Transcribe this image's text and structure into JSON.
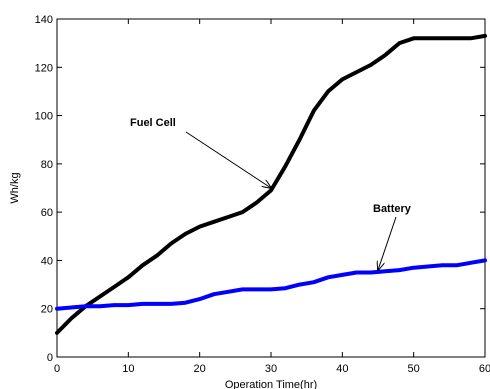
{
  "chart_data": {
    "type": "line",
    "xlabel": "Operation Time(hr)",
    "ylabel": "Wh/kg",
    "xlim": [
      0,
      60
    ],
    "ylim": [
      0,
      140
    ],
    "xticks": [
      0,
      10,
      20,
      30,
      40,
      50,
      60
    ],
    "yticks": [
      0,
      20,
      40,
      60,
      80,
      100,
      120,
      140
    ],
    "grid": false,
    "series": [
      {
        "name": "Fuel Cell",
        "color": "#000000",
        "x": [
          0,
          2,
          4,
          6,
          8,
          10,
          12,
          14,
          16,
          18,
          20,
          22,
          24,
          26,
          28,
          30,
          32,
          34,
          36,
          38,
          40,
          42,
          44,
          46,
          48,
          50,
          52,
          54,
          56,
          58,
          60
        ],
        "y": [
          10,
          16,
          21,
          25,
          29,
          33,
          38,
          42,
          47,
          51,
          54,
          56,
          58,
          60,
          64,
          69,
          79,
          90,
          102,
          110,
          115,
          118,
          121,
          125,
          130,
          132,
          132,
          132,
          132,
          132,
          133
        ]
      },
      {
        "name": "Battery",
        "color": "#0000ff",
        "x": [
          0,
          2,
          4,
          6,
          8,
          10,
          12,
          14,
          16,
          18,
          20,
          22,
          24,
          26,
          28,
          30,
          32,
          34,
          36,
          38,
          40,
          42,
          44,
          46,
          48,
          50,
          52,
          54,
          56,
          58,
          60
        ],
        "y": [
          20,
          20.5,
          21,
          21,
          21.5,
          21.5,
          22,
          22,
          22,
          22.5,
          24,
          26,
          27,
          28,
          28,
          28,
          28.5,
          30,
          31,
          33,
          34,
          35,
          35,
          35.5,
          36,
          37,
          37.5,
          38,
          38,
          39,
          40
        ]
      }
    ],
    "annotations": [
      {
        "text": "Fuel Cell",
        "arrow_to": [
          30,
          70
        ]
      },
      {
        "text": "Battery",
        "arrow_to": [
          45,
          36
        ]
      }
    ]
  }
}
